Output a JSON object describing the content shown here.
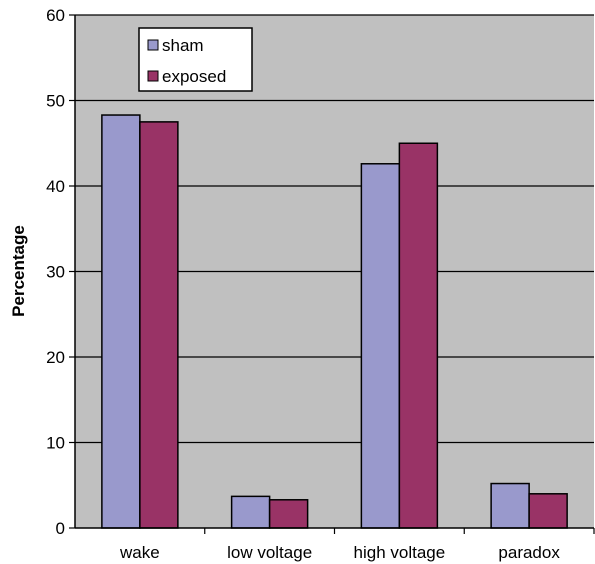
{
  "chart_data": {
    "type": "bar",
    "title": "",
    "xlabel": "",
    "ylabel": "Percentage",
    "ylim": [
      0,
      60
    ],
    "yticks": [
      0,
      10,
      20,
      30,
      40,
      50,
      60
    ],
    "grid": true,
    "legend_position": "top-left",
    "categories": [
      "wake",
      "low voltage",
      "high voltage",
      "paradox"
    ],
    "series": [
      {
        "name": "sham",
        "color": "#9999CC",
        "values": [
          48.3,
          3.7,
          42.6,
          5.2
        ]
      },
      {
        "name": "exposed",
        "color": "#993366",
        "values": [
          47.5,
          3.3,
          45.0,
          4.0
        ]
      }
    ],
    "plot_background": "#C0C0C0"
  }
}
